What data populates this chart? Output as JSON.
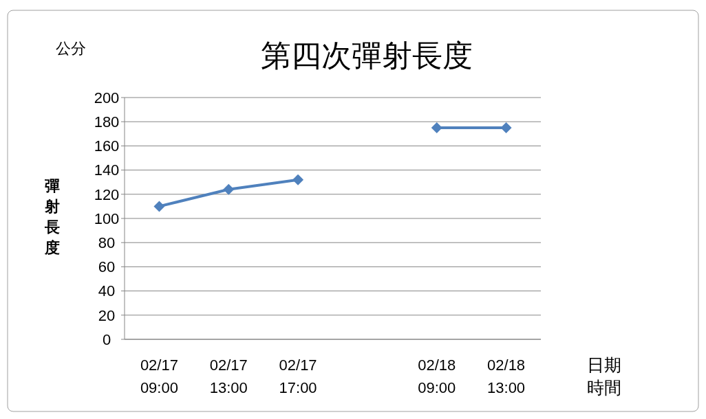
{
  "chart_data": {
    "type": "line",
    "title": "第四次彈射長度",
    "xlabel": "日期時間",
    "ylabel": "彈射長度",
    "annotations": [
      "公分"
    ],
    "categories": [
      "02/17\n09:00",
      "02/17\n13:00",
      "02/17\n17:00",
      null,
      "02/18\n09:00",
      "02/18\n13:00"
    ],
    "series": [
      {
        "color": "#4f81bd",
        "values": [
          110,
          124,
          132,
          null,
          175,
          175
        ]
      }
    ],
    "ylim": [
      0,
      200
    ],
    "yticks": [
      0,
      20,
      40,
      60,
      80,
      100,
      120,
      140,
      160,
      180,
      200
    ],
    "grid": "y",
    "marker": "diamond",
    "line_style": "solid"
  }
}
